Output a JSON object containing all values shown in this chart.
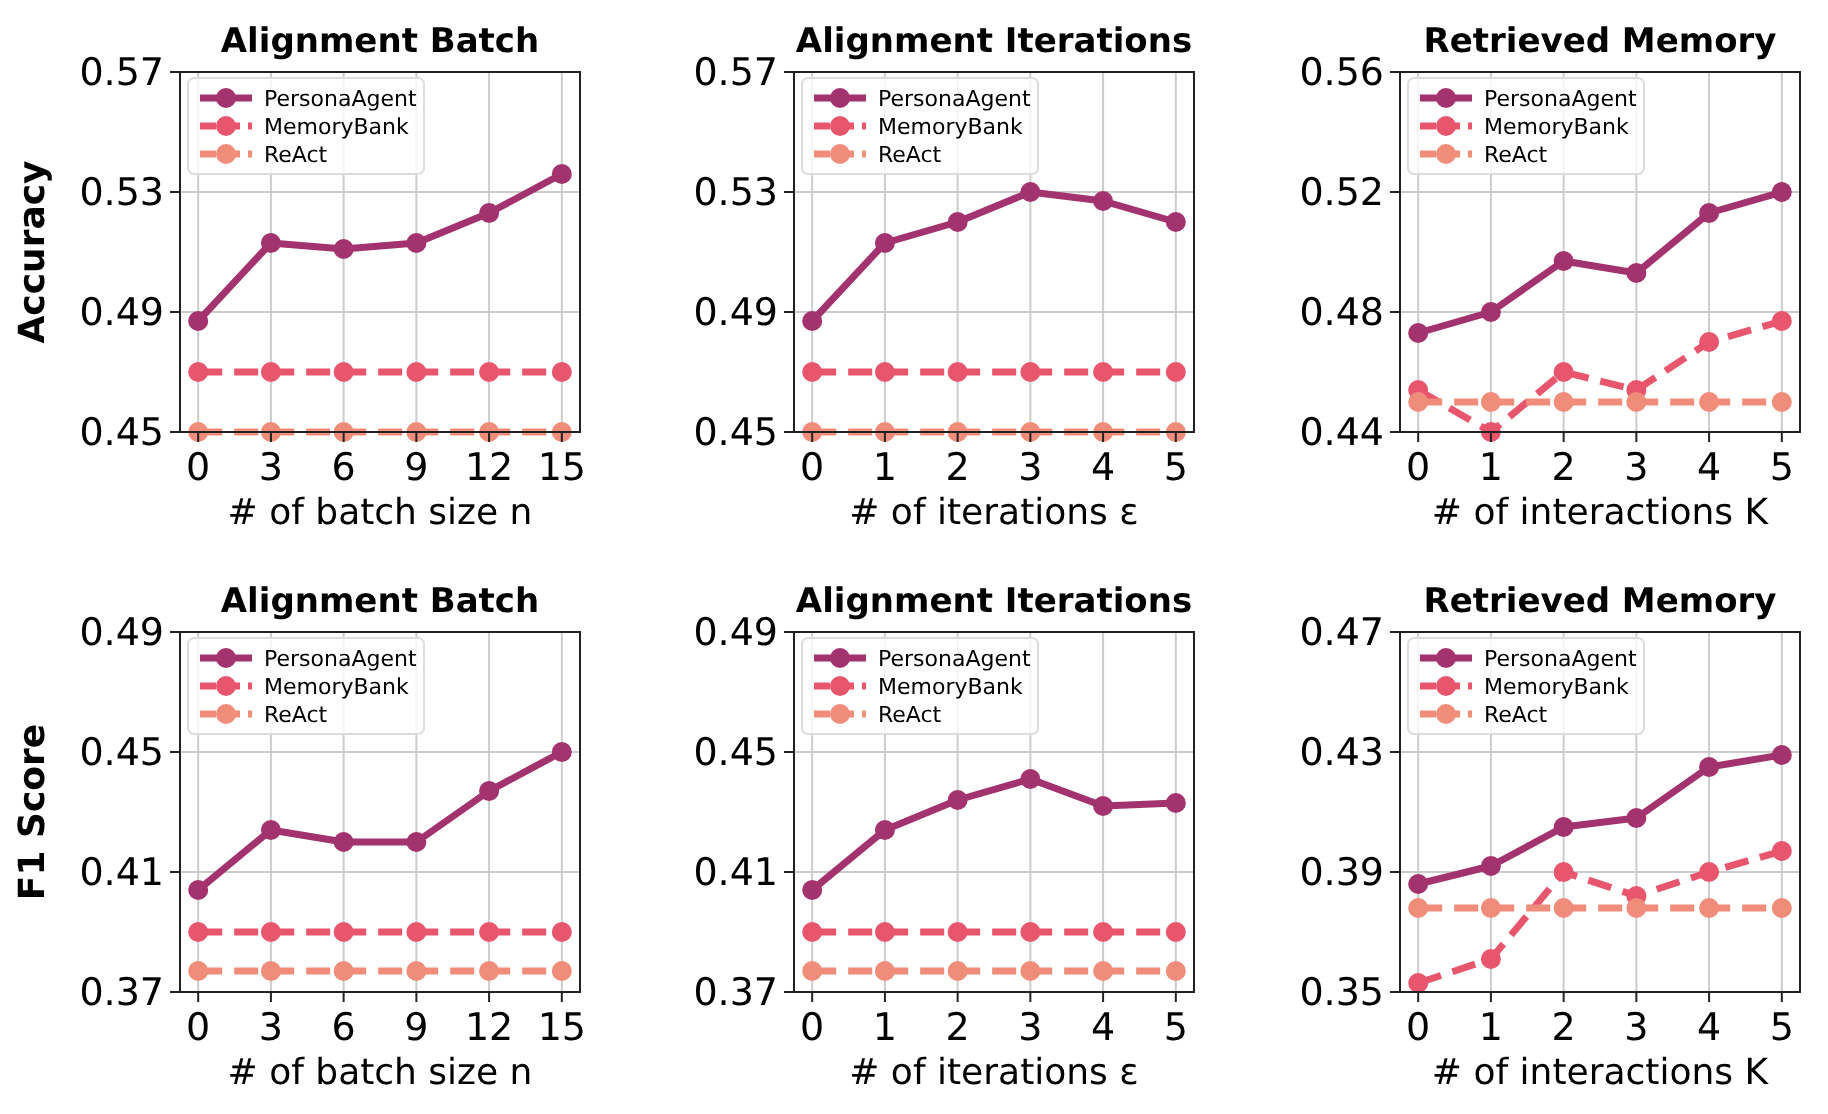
{
  "chart_data": [
    {
      "type": "line",
      "title": "Alignment Batch",
      "xlabel": "# of batch size n",
      "ylabel": "Accuracy",
      "x": [
        0,
        3,
        6,
        9,
        12,
        15
      ],
      "xlim": [
        -0.75,
        15.75
      ],
      "xticks": [
        0,
        3,
        6,
        9,
        12,
        15
      ],
      "ylim": [
        0.45,
        0.57
      ],
      "yticks": [
        {
          "value": 0.45,
          "label": "0.45"
        },
        {
          "value": 0.49,
          "label": "0.49"
        },
        {
          "value": 0.53,
          "label": "0.53"
        },
        {
          "value": 0.57,
          "label": "0.57"
        }
      ],
      "grid": true,
      "legend": "top left",
      "marker": "circle",
      "series": [
        {
          "name": "PersonaAgent",
          "color": "#a3336e",
          "line_style": "solid",
          "values": [
            0.487,
            0.513,
            0.511,
            0.513,
            0.523,
            0.536
          ]
        },
        {
          "name": "MemoryBank",
          "color": "#e8566e",
          "line_style": "dashed",
          "values": [
            0.47,
            0.47,
            0.47,
            0.47,
            0.47,
            0.47
          ]
        },
        {
          "name": "ReAct",
          "color": "#f08c7a",
          "line_style": "dashed",
          "values": [
            0.45,
            0.45,
            0.45,
            0.45,
            0.45,
            0.45
          ]
        }
      ]
    },
    {
      "type": "line",
      "title": "Alignment Iterations",
      "xlabel": "# of iterations ε",
      "x": [
        0,
        1,
        2,
        3,
        4,
        5
      ],
      "xlim": [
        -0.25,
        5.25
      ],
      "xticks": [
        0,
        1,
        2,
        3,
        4,
        5
      ],
      "ylim": [
        0.45,
        0.57
      ],
      "yticks": [
        {
          "value": 0.45,
          "label": "0.45"
        },
        {
          "value": 0.49,
          "label": "0.49"
        },
        {
          "value": 0.53,
          "label": "0.53"
        },
        {
          "value": 0.57,
          "label": "0.57"
        }
      ],
      "grid": true,
      "legend": "top left",
      "marker": "circle",
      "series": [
        {
          "name": "PersonaAgent",
          "color": "#a3336e",
          "line_style": "solid",
          "values": [
            0.487,
            0.513,
            0.52,
            0.53,
            0.527,
            0.52
          ]
        },
        {
          "name": "MemoryBank",
          "color": "#e8566e",
          "line_style": "dashed",
          "values": [
            0.47,
            0.47,
            0.47,
            0.47,
            0.47,
            0.47
          ]
        },
        {
          "name": "ReAct",
          "color": "#f08c7a",
          "line_style": "dashed",
          "values": [
            0.45,
            0.45,
            0.45,
            0.45,
            0.45,
            0.45
          ]
        }
      ]
    },
    {
      "type": "line",
      "title": "Retrieved Memory",
      "xlabel": "# of interactions K",
      "x": [
        0,
        1,
        2,
        3,
        4,
        5
      ],
      "xlim": [
        -0.25,
        5.25
      ],
      "xticks": [
        0,
        1,
        2,
        3,
        4,
        5
      ],
      "ylim": [
        0.44,
        0.56
      ],
      "yticks": [
        {
          "value": 0.44,
          "label": "0.44"
        },
        {
          "value": 0.48,
          "label": "0.48"
        },
        {
          "value": 0.52,
          "label": "0.52"
        },
        {
          "value": 0.56,
          "label": "0.56"
        }
      ],
      "grid": true,
      "legend": "top left",
      "marker": "circle",
      "series": [
        {
          "name": "PersonaAgent",
          "color": "#a3336e",
          "line_style": "solid",
          "values": [
            0.473,
            0.48,
            0.497,
            0.493,
            0.513,
            0.52
          ]
        },
        {
          "name": "MemoryBank",
          "color": "#e8566e",
          "line_style": "dashed",
          "values": [
            0.454,
            0.44,
            0.46,
            0.454,
            0.47,
            0.477
          ]
        },
        {
          "name": "ReAct",
          "color": "#f08c7a",
          "line_style": "dashed",
          "values": [
            0.45,
            0.45,
            0.45,
            0.45,
            0.45,
            0.45
          ]
        }
      ]
    },
    {
      "type": "line",
      "title": "Alignment Batch",
      "xlabel": "# of batch size n",
      "ylabel": "F1 Score",
      "x": [
        0,
        3,
        6,
        9,
        12,
        15
      ],
      "xlim": [
        -0.75,
        15.75
      ],
      "xticks": [
        0,
        3,
        6,
        9,
        12,
        15
      ],
      "ylim": [
        0.37,
        0.49
      ],
      "yticks": [
        {
          "value": 0.37,
          "label": "0.37"
        },
        {
          "value": 0.41,
          "label": "0.41"
        },
        {
          "value": 0.45,
          "label": "0.45"
        },
        {
          "value": 0.49,
          "label": "0.49"
        }
      ],
      "grid": true,
      "legend": "top left",
      "marker": "circle",
      "series": [
        {
          "name": "PersonaAgent",
          "color": "#a3336e",
          "line_style": "solid",
          "values": [
            0.404,
            0.424,
            0.42,
            0.42,
            0.437,
            0.45
          ]
        },
        {
          "name": "MemoryBank",
          "color": "#e8566e",
          "line_style": "dashed",
          "values": [
            0.39,
            0.39,
            0.39,
            0.39,
            0.39,
            0.39
          ]
        },
        {
          "name": "ReAct",
          "color": "#f08c7a",
          "line_style": "dashed",
          "values": [
            0.377,
            0.377,
            0.377,
            0.377,
            0.377,
            0.377
          ]
        }
      ]
    },
    {
      "type": "line",
      "title": "Alignment Iterations",
      "xlabel": "# of iterations ε",
      "x": [
        0,
        1,
        2,
        3,
        4,
        5
      ],
      "xlim": [
        -0.25,
        5.25
      ],
      "xticks": [
        0,
        1,
        2,
        3,
        4,
        5
      ],
      "ylim": [
        0.37,
        0.49
      ],
      "yticks": [
        {
          "value": 0.37,
          "label": "0.37"
        },
        {
          "value": 0.41,
          "label": "0.41"
        },
        {
          "value": 0.45,
          "label": "0.45"
        },
        {
          "value": 0.49,
          "label": "0.49"
        }
      ],
      "grid": true,
      "legend": "top left",
      "marker": "circle",
      "series": [
        {
          "name": "PersonaAgent",
          "color": "#a3336e",
          "line_style": "solid",
          "values": [
            0.404,
            0.424,
            0.434,
            0.441,
            0.432,
            0.433
          ]
        },
        {
          "name": "MemoryBank",
          "color": "#e8566e",
          "line_style": "dashed",
          "values": [
            0.39,
            0.39,
            0.39,
            0.39,
            0.39,
            0.39
          ]
        },
        {
          "name": "ReAct",
          "color": "#f08c7a",
          "line_style": "dashed",
          "values": [
            0.377,
            0.377,
            0.377,
            0.377,
            0.377,
            0.377
          ]
        }
      ]
    },
    {
      "type": "line",
      "title": "Retrieved Memory",
      "xlabel": "# of interactions K",
      "x": [
        0,
        1,
        2,
        3,
        4,
        5
      ],
      "xlim": [
        -0.25,
        5.25
      ],
      "xticks": [
        0,
        1,
        2,
        3,
        4,
        5
      ],
      "ylim": [
        0.35,
        0.47
      ],
      "yticks": [
        {
          "value": 0.35,
          "label": "0.35"
        },
        {
          "value": 0.39,
          "label": "0.39"
        },
        {
          "value": 0.43,
          "label": "0.43"
        },
        {
          "value": 0.47,
          "label": "0.47"
        }
      ],
      "grid": true,
      "legend": "top left",
      "marker": "circle",
      "series": [
        {
          "name": "PersonaAgent",
          "color": "#a3336e",
          "line_style": "solid",
          "values": [
            0.386,
            0.392,
            0.405,
            0.408,
            0.425,
            0.429
          ]
        },
        {
          "name": "MemoryBank",
          "color": "#e8566e",
          "line_style": "dashed",
          "values": [
            0.353,
            0.361,
            0.39,
            0.382,
            0.39,
            0.397
          ]
        },
        {
          "name": "ReAct",
          "color": "#f08c7a",
          "line_style": "dashed",
          "values": [
            0.378,
            0.378,
            0.378,
            0.378,
            0.378,
            0.378
          ]
        }
      ]
    }
  ]
}
